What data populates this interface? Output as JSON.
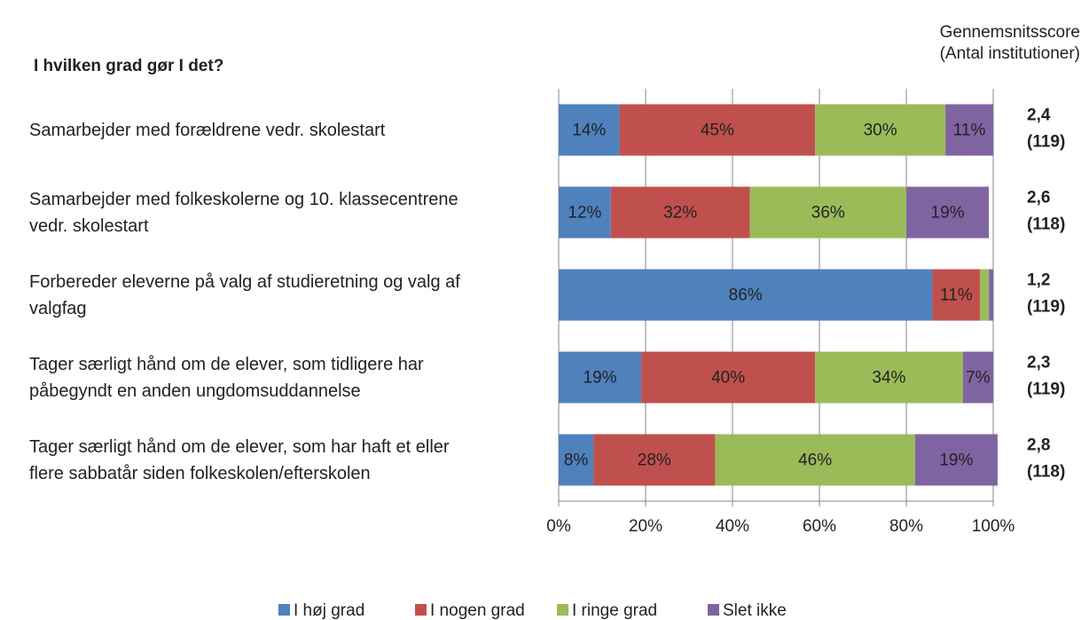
{
  "chart_data": {
    "type": "stacked_bar_horizontal",
    "title": "I hvilken grad gør I det?",
    "right_header": [
      "Gennemsnitsscore",
      "(Antal institutioner)"
    ],
    "categories": [
      "Samarbejder med forældrene vedr. skolestart",
      "Samarbejder med folkeskolerne og 10. klassecentrene\nvedr. skolestart",
      "Forbereder eleverne på valg af studieretning og valg af\nvalgfag",
      "Tager særligt hånd om de elever, som tidligere har\npåbegyndt en anden ungdomsuddannelse",
      "Tager særligt hånd om de elever, som har haft et eller\nflere sabbatår siden folkeskolen/efterskolen"
    ],
    "series": [
      {
        "name": "I høj grad",
        "color": "#4f81bd",
        "values": [
          14,
          12,
          86,
          19,
          8
        ],
        "value_labels": [
          "14%",
          "12%",
          "86%",
          "19%",
          "8%"
        ]
      },
      {
        "name": "I nogen grad",
        "color": "#c0504d",
        "values": [
          45,
          32,
          11,
          40,
          28
        ],
        "value_labels": [
          "45%",
          "32%",
          "11%",
          "40%",
          "28%"
        ]
      },
      {
        "name": "I ringe grad",
        "color": "#9bbb59",
        "values": [
          30,
          36,
          2,
          34,
          46
        ],
        "value_labels": [
          "30%",
          "36%",
          null,
          "34%",
          "46%"
        ]
      },
      {
        "name": "Slet ikke",
        "color": "#8064a2",
        "values": [
          11,
          19,
          1,
          7,
          19
        ],
        "value_labels": [
          "11%",
          "19%",
          null,
          "7%",
          "19%"
        ]
      }
    ],
    "scores": [
      "2,4",
      "2,6",
      "1,2",
      "2,3",
      "2,8"
    ],
    "counts": [
      "(119)",
      "(118)",
      "(119)",
      "(119)",
      "(118)"
    ],
    "xlim": [
      0,
      100
    ],
    "xticks": [
      {
        "value": 0,
        "label": "0%"
      },
      {
        "value": 20,
        "label": "20%"
      },
      {
        "value": 40,
        "label": "40%"
      },
      {
        "value": 60,
        "label": "60%"
      },
      {
        "value": 80,
        "label": "80%"
      },
      {
        "value": 100,
        "label": "100%"
      }
    ],
    "grid": true,
    "legend": "bottom"
  }
}
